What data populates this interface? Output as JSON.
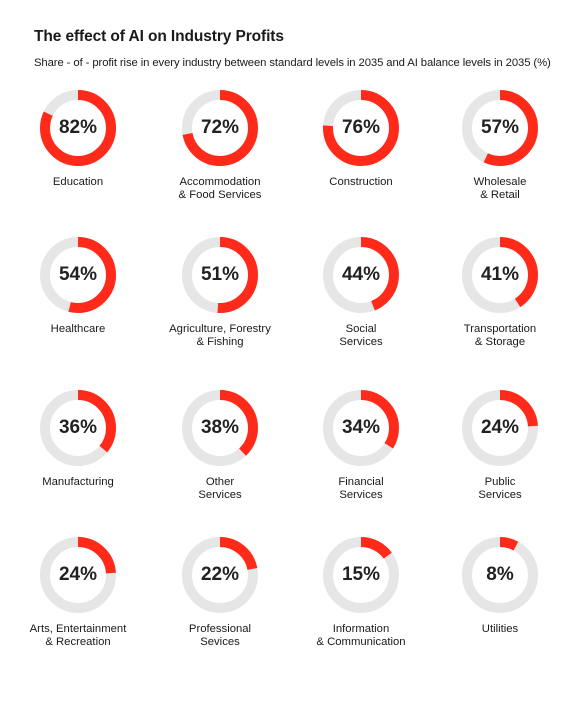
{
  "title": "The effect of AI on Industry Profits",
  "subtitle": "Share - of - profit rise in every industry between standard levels in 2035 and AI balance levels in 2035 (%)",
  "colors": {
    "accent": "#ff2a1a",
    "track": "#e6e6e6"
  },
  "chart_data": {
    "type": "pie",
    "value_format": "percent",
    "categories": [
      "Education",
      "Accommodation\n& Food Services",
      "Construction",
      "Wholesale\n& Retail",
      "Healthcare",
      "Agriculture, Forestry\n& Fishing",
      "Social\nServices",
      "Transportation\n& Storage",
      "Manufacturing",
      "Other\nServices",
      "Financial\nServices",
      "Public\nServices",
      "Arts, Entertainment\n& Recreation",
      "Professional\nSevices",
      "Information\n& Communication",
      "Utilities"
    ],
    "values": [
      82,
      72,
      76,
      57,
      54,
      51,
      44,
      41,
      36,
      38,
      34,
      24,
      24,
      22,
      15,
      8
    ],
    "labels": [
      "82%",
      "72%",
      "76%",
      "57%",
      "54%",
      "51%",
      "44%",
      "41%",
      "36%",
      "38%",
      "34%",
      "24%",
      "24%",
      "22%",
      "15%",
      "8%"
    ]
  }
}
